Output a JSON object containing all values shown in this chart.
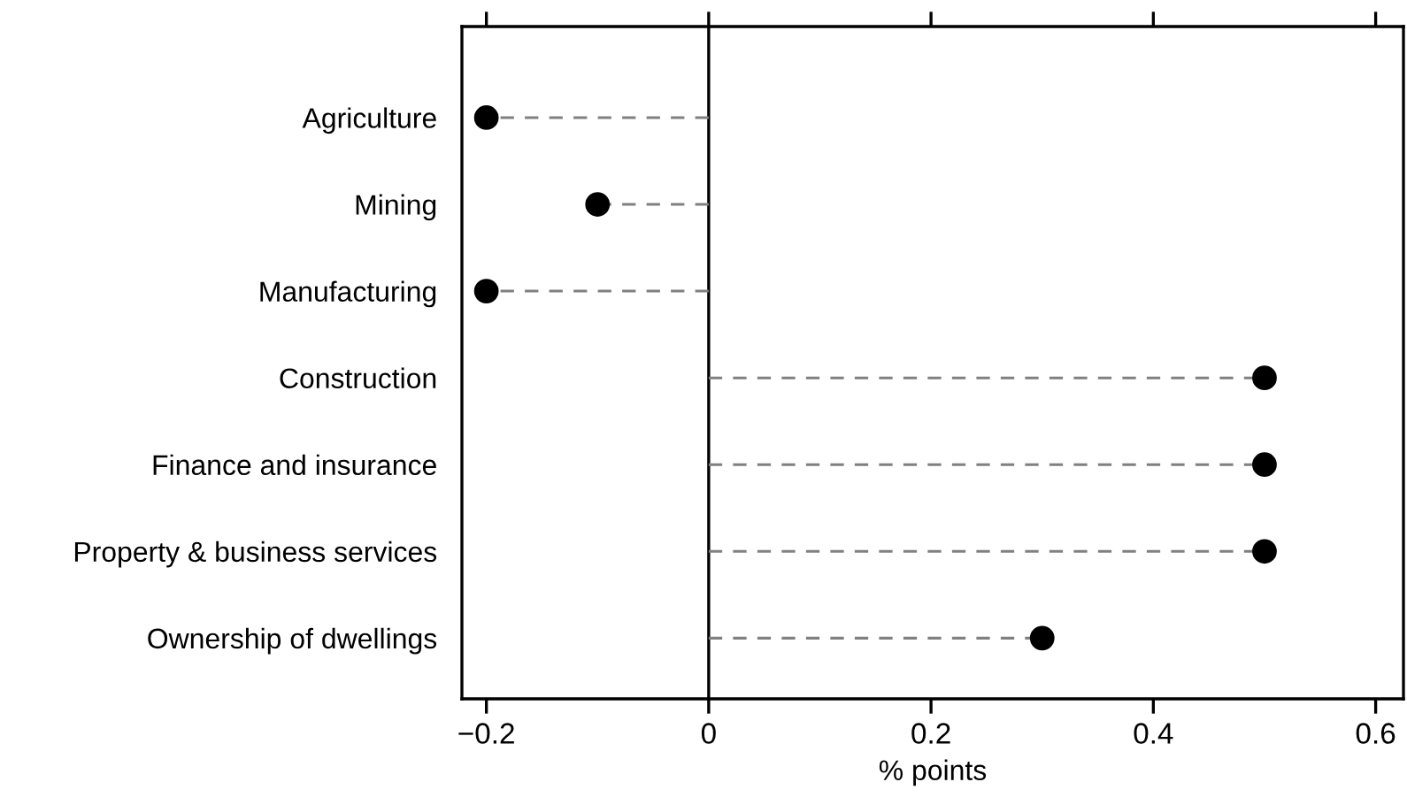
{
  "chart_data": {
    "type": "lollipop",
    "orientation": "horizontal",
    "xlabel": "% points",
    "categories": [
      "Agriculture",
      "Mining",
      "Manufacturing",
      "Construction",
      "Finance and insurance",
      "Property & business services",
      "Ownership of dwellings"
    ],
    "values": [
      -0.2,
      -0.1,
      -0.2,
      0.5,
      0.5,
      0.5,
      0.3
    ],
    "color": "#000000",
    "marker": "circle",
    "line_style": "dashed",
    "xlim": [
      -0.222,
      0.625
    ],
    "xticks": [
      {
        "value": -0.2,
        "label": "−0.2"
      },
      0,
      0.2,
      0.4,
      0.6
    ],
    "ref_lines": [
      {
        "axis": "x",
        "value": 0,
        "label": null,
        "color": "#000000",
        "line_style": "solid"
      }
    ],
    "grid": false,
    "legend": false
  }
}
